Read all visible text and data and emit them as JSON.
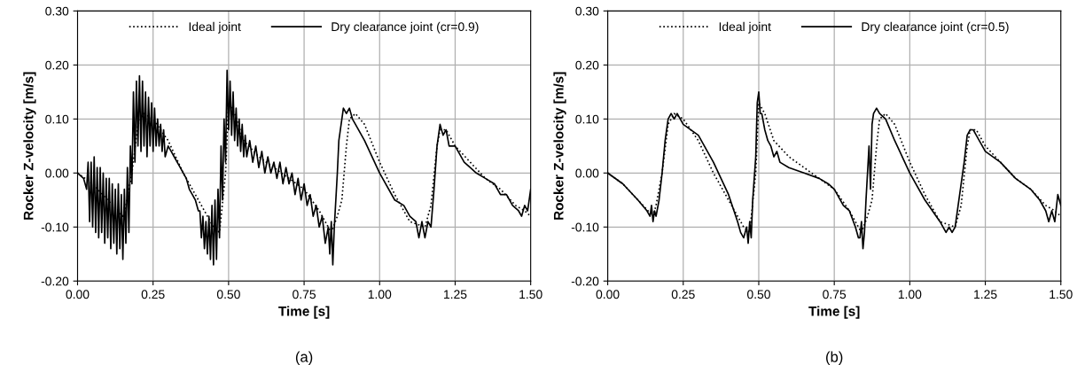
{
  "chart_data": [
    {
      "type": "line",
      "xlabel": "Time [s]",
      "ylabel": "Rocker Z-velocity [m/s]",
      "annotations": [
        "(a)"
      ],
      "grid": true,
      "legend": "top",
      "marker": "none",
      "xlim": [
        0,
        1.5
      ],
      "ylim": [
        -0.2,
        0.3
      ],
      "xticks": [
        {
          "value": 0,
          "label": "0.00"
        },
        {
          "value": 0.25,
          "label": "0.25"
        },
        {
          "value": 0.5,
          "label": "0.50"
        },
        {
          "value": 0.75,
          "label": "0.75"
        },
        {
          "value": 1.0,
          "label": "1.00"
        },
        {
          "value": 1.25,
          "label": "1.25"
        },
        {
          "value": 1.5,
          "label": "1.50"
        }
      ],
      "yticks": [
        {
          "value": -0.2,
          "label": "-0.20"
        },
        {
          "value": -0.1,
          "label": "-0.10"
        },
        {
          "value": 0,
          "label": "0.00"
        },
        {
          "value": 0.1,
          "label": "0.10"
        },
        {
          "value": 0.2,
          "label": "0.20"
        },
        {
          "value": 0.3,
          "label": "0.30"
        }
      ],
      "series": [
        {
          "name": "Ideal joint",
          "color": "#000000",
          "line_style": "dotted",
          "x": [
            0,
            0.05,
            0.1,
            0.15,
            0.16,
            0.18,
            0.2,
            0.22,
            0.25,
            0.3,
            0.35,
            0.4,
            0.45,
            0.47,
            0.49,
            0.5,
            0.52,
            0.55,
            0.6,
            0.65,
            0.7,
            0.75,
            0.8,
            0.84,
            0.86,
            0.875,
            0.89,
            0.9,
            0.92,
            0.95,
            1.0,
            1.05,
            1.1,
            1.15,
            1.17,
            1.19,
            1.2,
            1.22,
            1.25,
            1.3,
            1.35,
            1.4,
            1.45,
            1.48,
            1.5
          ],
          "values": [
            0,
            -0.02,
            -0.05,
            -0.08,
            -0.06,
            0,
            0.09,
            0.11,
            0.1,
            0.06,
            0,
            -0.05,
            -0.1,
            -0.11,
            0,
            0.13,
            0.11,
            0.06,
            0.03,
            0.01,
            -0.01,
            -0.03,
            -0.07,
            -0.11,
            -0.08,
            -0.05,
            0.05,
            0.1,
            0.11,
            0.09,
            0.02,
            -0.04,
            -0.09,
            -0.1,
            -0.06,
            0.05,
            0.08,
            0.08,
            0.05,
            0.02,
            -0.01,
            -0.03,
            -0.06,
            -0.07,
            -0.08
          ]
        },
        {
          "name": "Dry clearance joint (cr=0.9)",
          "color": "#000000",
          "line_style": "solid",
          "x": [
            0,
            0.02,
            0.03,
            0.035,
            0.04,
            0.045,
            0.05,
            0.055,
            0.06,
            0.065,
            0.07,
            0.075,
            0.08,
            0.085,
            0.09,
            0.095,
            0.1,
            0.105,
            0.11,
            0.115,
            0.12,
            0.125,
            0.13,
            0.135,
            0.14,
            0.145,
            0.15,
            0.155,
            0.16,
            0.165,
            0.17,
            0.175,
            0.18,
            0.185,
            0.19,
            0.195,
            0.2,
            0.205,
            0.21,
            0.215,
            0.22,
            0.225,
            0.23,
            0.235,
            0.24,
            0.245,
            0.25,
            0.255,
            0.26,
            0.265,
            0.27,
            0.275,
            0.28,
            0.285,
            0.29,
            0.3,
            0.31,
            0.32,
            0.33,
            0.34,
            0.35,
            0.36,
            0.37,
            0.38,
            0.39,
            0.4,
            0.405,
            0.41,
            0.415,
            0.42,
            0.425,
            0.43,
            0.435,
            0.44,
            0.445,
            0.45,
            0.455,
            0.46,
            0.465,
            0.47,
            0.475,
            0.48,
            0.485,
            0.49,
            0.495,
            0.5,
            0.505,
            0.51,
            0.515,
            0.52,
            0.525,
            0.53,
            0.535,
            0.54,
            0.545,
            0.55,
            0.555,
            0.56,
            0.57,
            0.58,
            0.59,
            0.6,
            0.61,
            0.62,
            0.63,
            0.64,
            0.65,
            0.66,
            0.67,
            0.68,
            0.69,
            0.7,
            0.71,
            0.72,
            0.73,
            0.74,
            0.75,
            0.76,
            0.77,
            0.78,
            0.79,
            0.8,
            0.81,
            0.82,
            0.83,
            0.835,
            0.84,
            0.845,
            0.85,
            0.855,
            0.86,
            0.865,
            0.87,
            0.875,
            0.88,
            0.89,
            0.9,
            0.91,
            0.92,
            0.95,
            1.0,
            1.05,
            1.08,
            1.1,
            1.12,
            1.13,
            1.14,
            1.15,
            1.16,
            1.17,
            1.18,
            1.19,
            1.2,
            1.21,
            1.22,
            1.23,
            1.25,
            1.28,
            1.3,
            1.32,
            1.35,
            1.38,
            1.4,
            1.42,
            1.44,
            1.46,
            1.47,
            1.48,
            1.49,
            1.5
          ],
          "values": [
            0,
            -0.01,
            -0.03,
            0.02,
            -0.09,
            0.02,
            -0.1,
            0.03,
            -0.11,
            0.01,
            -0.12,
            0.01,
            -0.11,
            0,
            -0.13,
            -0.01,
            -0.12,
            -0.01,
            -0.14,
            -0.02,
            -0.13,
            -0.03,
            -0.15,
            -0.02,
            -0.14,
            -0.04,
            -0.16,
            -0.03,
            -0.13,
            0.01,
            -0.11,
            0.05,
            -0.02,
            0.15,
            0.02,
            0.17,
            0.05,
            0.18,
            0.04,
            0.17,
            0.05,
            0.15,
            0.03,
            0.14,
            0.05,
            0.13,
            0.04,
            0.12,
            0.05,
            0.1,
            0.05,
            0.09,
            0.04,
            0.08,
            0.03,
            0.05,
            0.04,
            0.03,
            0.02,
            0.01,
            0,
            -0.01,
            -0.03,
            -0.04,
            -0.05,
            -0.07,
            -0.07,
            -0.12,
            -0.08,
            -0.14,
            -0.09,
            -0.15,
            -0.08,
            -0.16,
            -0.06,
            -0.17,
            -0.05,
            -0.16,
            -0.03,
            -0.12,
            0.05,
            -0.05,
            0.1,
            0.02,
            0.19,
            0.08,
            0.17,
            0.07,
            0.15,
            0.06,
            0.12,
            0.05,
            0.1,
            0.04,
            0.09,
            0.03,
            0.07,
            0.03,
            0.06,
            0.02,
            0.05,
            0.01,
            0.04,
            0,
            0.03,
            0,
            0.02,
            -0.01,
            0.02,
            -0.02,
            0.01,
            -0.02,
            0,
            -0.04,
            -0.01,
            -0.05,
            -0.02,
            -0.06,
            -0.04,
            -0.08,
            -0.06,
            -0.1,
            -0.08,
            -0.13,
            -0.1,
            -0.15,
            -0.09,
            -0.17,
            -0.1,
            -0.05,
            0,
            0.06,
            0.08,
            0.1,
            0.12,
            0.11,
            0.12,
            0.1,
            0.09,
            0.06,
            0,
            -0.05,
            -0.06,
            -0.08,
            -0.09,
            -0.12,
            -0.09,
            -0.12,
            -0.09,
            -0.1,
            -0.03,
            0.05,
            0.09,
            0.07,
            0.08,
            0.05,
            0.05,
            0.02,
            0.01,
            0,
            -0.01,
            -0.02,
            -0.04,
            -0.04,
            -0.06,
            -0.07,
            -0.08,
            -0.06,
            -0.07,
            -0.03
          ]
        }
      ]
    },
    {
      "type": "line",
      "xlabel": "Time [s]",
      "ylabel": "Rocker Z-velocity [m/s]",
      "annotations": [
        "(b)"
      ],
      "grid": true,
      "legend": "top",
      "marker": "none",
      "xlim": [
        0,
        1.5
      ],
      "ylim": [
        -0.2,
        0.3
      ],
      "xticks": [
        {
          "value": 0,
          "label": "0.00"
        },
        {
          "value": 0.25,
          "label": "0.25"
        },
        {
          "value": 0.5,
          "label": "0.50"
        },
        {
          "value": 0.75,
          "label": "0.75"
        },
        {
          "value": 1.0,
          "label": "1.00"
        },
        {
          "value": 1.25,
          "label": "1.25"
        },
        {
          "value": 1.5,
          "label": "1.50"
        }
      ],
      "yticks": [
        {
          "value": -0.2,
          "label": "-0.20"
        },
        {
          "value": -0.1,
          "label": "-0.10"
        },
        {
          "value": 0,
          "label": "0.00"
        },
        {
          "value": 0.1,
          "label": "0.10"
        },
        {
          "value": 0.2,
          "label": "0.20"
        },
        {
          "value": 0.3,
          "label": "0.30"
        }
      ],
      "series": [
        {
          "name": "Ideal joint",
          "color": "#000000",
          "line_style": "dotted",
          "x": [
            0,
            0.05,
            0.1,
            0.15,
            0.16,
            0.18,
            0.2,
            0.22,
            0.25,
            0.3,
            0.35,
            0.4,
            0.45,
            0.47,
            0.49,
            0.5,
            0.52,
            0.55,
            0.6,
            0.65,
            0.7,
            0.75,
            0.8,
            0.84,
            0.86,
            0.875,
            0.89,
            0.9,
            0.92,
            0.95,
            1.0,
            1.05,
            1.1,
            1.15,
            1.17,
            1.19,
            1.2,
            1.22,
            1.25,
            1.3,
            1.35,
            1.4,
            1.45,
            1.48,
            1.5
          ],
          "values": [
            0,
            -0.02,
            -0.05,
            -0.08,
            -0.06,
            0,
            0.09,
            0.11,
            0.1,
            0.06,
            0,
            -0.05,
            -0.1,
            -0.11,
            0,
            0.13,
            0.11,
            0.06,
            0.03,
            0.01,
            -0.01,
            -0.03,
            -0.07,
            -0.11,
            -0.08,
            -0.05,
            0.05,
            0.1,
            0.11,
            0.09,
            0.02,
            -0.04,
            -0.09,
            -0.1,
            -0.06,
            0.05,
            0.08,
            0.08,
            0.05,
            0.02,
            -0.01,
            -0.03,
            -0.06,
            -0.07,
            -0.08
          ]
        },
        {
          "name": "Dry clearance joint (cr=0.5)",
          "color": "#000000",
          "line_style": "solid",
          "x": [
            0,
            0.05,
            0.1,
            0.13,
            0.14,
            0.145,
            0.15,
            0.155,
            0.16,
            0.17,
            0.18,
            0.19,
            0.2,
            0.21,
            0.22,
            0.23,
            0.25,
            0.3,
            0.35,
            0.4,
            0.43,
            0.44,
            0.45,
            0.46,
            0.465,
            0.47,
            0.475,
            0.48,
            0.49,
            0.495,
            0.5,
            0.505,
            0.51,
            0.52,
            0.53,
            0.54,
            0.55,
            0.56,
            0.57,
            0.6,
            0.65,
            0.7,
            0.73,
            0.75,
            0.78,
            0.8,
            0.82,
            0.83,
            0.835,
            0.84,
            0.845,
            0.85,
            0.855,
            0.86,
            0.865,
            0.87,
            0.875,
            0.88,
            0.89,
            0.9,
            0.92,
            0.95,
            1.0,
            1.05,
            1.1,
            1.12,
            1.13,
            1.14,
            1.15,
            1.16,
            1.18,
            1.19,
            1.2,
            1.21,
            1.22,
            1.25,
            1.3,
            1.35,
            1.4,
            1.43,
            1.45,
            1.46,
            1.47,
            1.48,
            1.49,
            1.5
          ],
          "values": [
            0,
            -0.02,
            -0.05,
            -0.07,
            -0.08,
            -0.06,
            -0.09,
            -0.07,
            -0.08,
            -0.05,
            0,
            0.06,
            0.1,
            0.11,
            0.1,
            0.11,
            0.09,
            0.07,
            0.02,
            -0.04,
            -0.09,
            -0.11,
            -0.12,
            -0.1,
            -0.13,
            -0.09,
            -0.12,
            -0.05,
            0.03,
            0.13,
            0.15,
            0.11,
            0.11,
            0.08,
            0.06,
            0.05,
            0.03,
            0.04,
            0.02,
            0.01,
            0,
            -0.01,
            -0.02,
            -0.03,
            -0.06,
            -0.07,
            -0.1,
            -0.12,
            -0.12,
            -0.09,
            -0.14,
            -0.11,
            -0.05,
            0,
            0.05,
            -0.03,
            0.09,
            0.11,
            0.12,
            0.11,
            0.1,
            0.06,
            0,
            -0.05,
            -0.09,
            -0.11,
            -0.1,
            -0.11,
            -0.1,
            -0.06,
            0.02,
            0.07,
            0.08,
            0.08,
            0.07,
            0.04,
            0.02,
            -0.01,
            -0.03,
            -0.05,
            -0.07,
            -0.09,
            -0.07,
            -0.09,
            -0.04,
            -0.06
          ]
        }
      ]
    }
  ]
}
